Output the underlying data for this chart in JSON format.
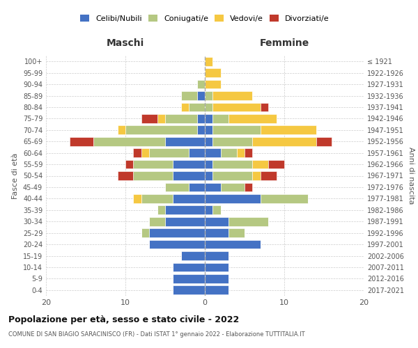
{
  "age_groups": [
    "0-4",
    "5-9",
    "10-14",
    "15-19",
    "20-24",
    "25-29",
    "30-34",
    "35-39",
    "40-44",
    "45-49",
    "50-54",
    "55-59",
    "60-64",
    "65-69",
    "70-74",
    "75-79",
    "80-84",
    "85-89",
    "90-94",
    "95-99",
    "100+"
  ],
  "birth_years": [
    "2017-2021",
    "2012-2016",
    "2007-2011",
    "2002-2006",
    "1997-2001",
    "1992-1996",
    "1987-1991",
    "1982-1986",
    "1977-1981",
    "1972-1976",
    "1967-1971",
    "1962-1966",
    "1957-1961",
    "1952-1956",
    "1947-1951",
    "1942-1946",
    "1937-1941",
    "1932-1936",
    "1927-1931",
    "1922-1926",
    "≤ 1921"
  ],
  "maschi": {
    "celibi": [
      4,
      4,
      4,
      3,
      7,
      7,
      5,
      5,
      4,
      2,
      4,
      4,
      2,
      5,
      1,
      1,
      0,
      1,
      0,
      0,
      0
    ],
    "coniugati": [
      0,
      0,
      0,
      0,
      0,
      1,
      2,
      1,
      4,
      3,
      5,
      5,
      5,
      9,
      9,
      4,
      2,
      2,
      1,
      0,
      0
    ],
    "vedovi": [
      0,
      0,
      0,
      0,
      0,
      0,
      0,
      0,
      1,
      0,
      0,
      0,
      1,
      0,
      1,
      1,
      1,
      0,
      0,
      0,
      0
    ],
    "divorziati": [
      0,
      0,
      0,
      0,
      0,
      0,
      0,
      0,
      0,
      0,
      2,
      1,
      1,
      3,
      0,
      2,
      0,
      0,
      0,
      0,
      0
    ]
  },
  "femmine": {
    "nubili": [
      3,
      3,
      3,
      3,
      7,
      3,
      3,
      1,
      7,
      2,
      1,
      1,
      2,
      1,
      1,
      1,
      0,
      0,
      0,
      0,
      0
    ],
    "coniugate": [
      0,
      0,
      0,
      0,
      0,
      2,
      5,
      1,
      6,
      3,
      5,
      5,
      2,
      5,
      6,
      2,
      1,
      1,
      0,
      0,
      0
    ],
    "vedove": [
      0,
      0,
      0,
      0,
      0,
      0,
      0,
      0,
      0,
      0,
      1,
      2,
      1,
      8,
      7,
      6,
      6,
      5,
      2,
      2,
      1
    ],
    "divorziate": [
      0,
      0,
      0,
      0,
      0,
      0,
      0,
      0,
      0,
      1,
      2,
      2,
      1,
      2,
      0,
      0,
      1,
      0,
      0,
      0,
      0
    ]
  },
  "colors": {
    "celibi_nubili": "#4472C4",
    "coniugati": "#B5C882",
    "vedovi": "#F5C842",
    "divorziati": "#C0392B"
  },
  "title": "Popolazione per età, sesso e stato civile - 2022",
  "subtitle": "COMUNE DI SAN BIAGIO SARACINISCO (FR) - Dati ISTAT 1° gennaio 2022 - Elaborazione TUTTITALIA.IT",
  "ylabel": "Fasce di età",
  "ylabel_right": "Anni di nascita",
  "xlabel_maschi": "Maschi",
  "xlabel_femmine": "Femmine",
  "xlim": 20,
  "background_color": "#ffffff",
  "grid_color": "#cccccc"
}
